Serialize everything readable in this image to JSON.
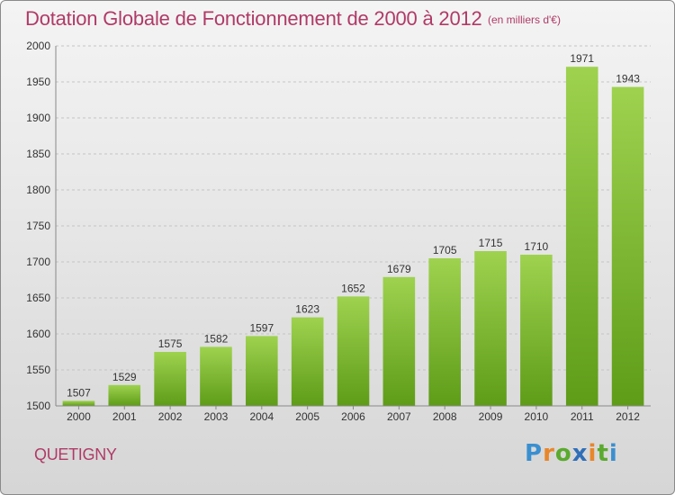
{
  "chart_data": {
    "type": "bar",
    "title": "Dotation Globale de Fonctionnement de 2000 à 2012",
    "unit_note": "(en milliers d'€)",
    "categories": [
      "2000",
      "2001",
      "2002",
      "2003",
      "2004",
      "2005",
      "2006",
      "2007",
      "2008",
      "2009",
      "2010",
      "2011",
      "2012"
    ],
    "values": [
      1507,
      1529,
      1575,
      1582,
      1597,
      1623,
      1652,
      1679,
      1705,
      1715,
      1710,
      1971,
      1943
    ],
    "ylim": [
      1500,
      2000
    ],
    "yticks": [
      1500,
      1550,
      1600,
      1650,
      1700,
      1750,
      1800,
      1850,
      1900,
      1950,
      2000
    ],
    "grid": true,
    "colors": {
      "bar_top": "#9ed24f",
      "bar_bottom": "#5e9c18",
      "title": "#b03a66"
    }
  },
  "place_name": "QUETIGNY",
  "logo": {
    "text": "Proxiti",
    "letters": [
      {
        "ch": "P",
        "color": "#3a8fd0"
      },
      {
        "ch": "r",
        "color": "#e8862a"
      },
      {
        "ch": "o",
        "color": "#5aaa2e"
      },
      {
        "ch": "x",
        "color": "#2f6fb8"
      },
      {
        "ch": "i",
        "color": "#e8862a"
      },
      {
        "ch": "t",
        "color": "#5aaa2e"
      },
      {
        "ch": "i",
        "color": "#3a8fd0"
      }
    ]
  }
}
